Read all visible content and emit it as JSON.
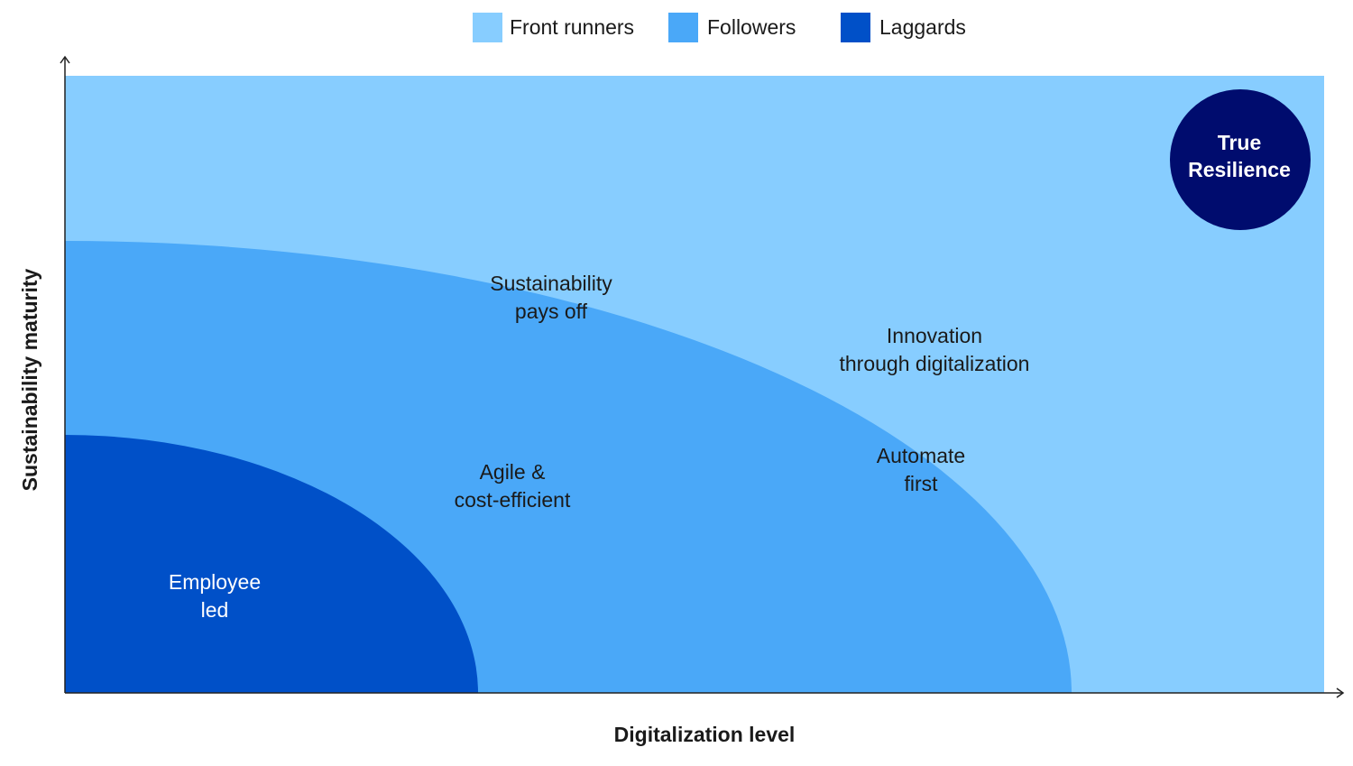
{
  "legend": [
    {
      "label": "Front runners",
      "color": "#87cdff"
    },
    {
      "label": "Followers",
      "color": "#4aa8f8"
    },
    {
      "label": "Laggards",
      "color": "#0050c8"
    }
  ],
  "axes": {
    "x_label": "Digitalization level",
    "y_label": "Sustainability maturity"
  },
  "badge": {
    "lines": [
      "True",
      "Resilience"
    ],
    "color": "#000c6e"
  },
  "zones": [
    {
      "lines": [
        "Sustainability",
        "pays off"
      ]
    },
    {
      "lines": [
        "Innovation",
        "through digitalization"
      ]
    },
    {
      "lines": [
        "Automate",
        "first"
      ]
    },
    {
      "lines": [
        "Agile &",
        "cost-efficient"
      ]
    },
    {
      "lines": [
        "Employee",
        "led"
      ]
    }
  ]
}
